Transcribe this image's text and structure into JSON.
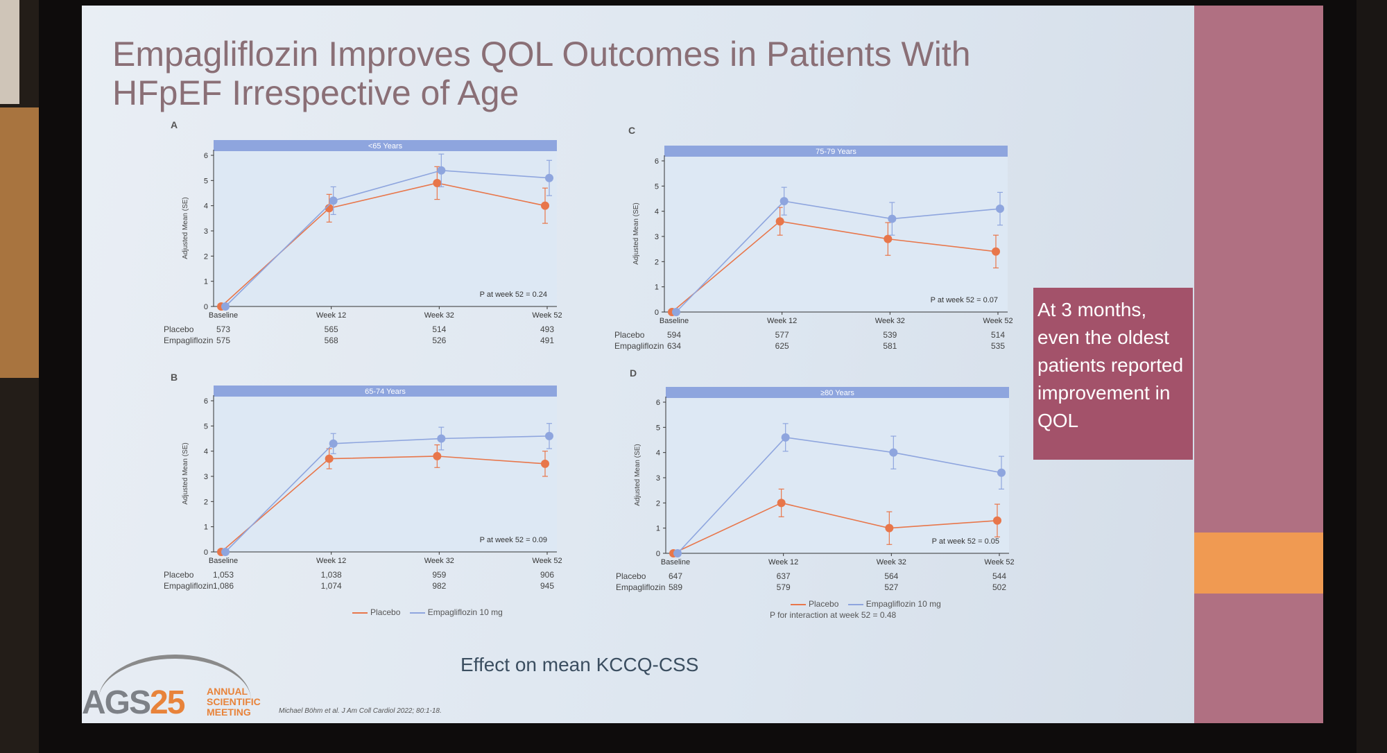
{
  "slide": {
    "title": "Empagliflozin Improves QOL Outcomes in Patients With HFpEF Irrespective of Age",
    "callout": "At 3 months, even the oldest patients reported improvement in QOL",
    "effect_label": "Effect on mean KCCQ-CSS",
    "citation": "Michael Böhm et al. J Am Coll Cardiol 2022; 80:1-18.",
    "logo": {
      "letters": "AGS",
      "number": "25",
      "line1": "ANNUAL",
      "line2": "SCIENTIFIC",
      "line3": "MEETING"
    },
    "colors": {
      "placebo": "#e8764a",
      "empagliflozin": "#8ea5de",
      "banner": "#8ea5de",
      "callout": "#a3526a"
    }
  },
  "legend": {
    "placebo": "Placebo",
    "empagliflozin": "Empagliflozin 10 mg"
  },
  "p_interaction": "P for interaction at week 52 = 0.48",
  "chart_data": [
    {
      "panel": "A",
      "type": "line",
      "banner": "<65 Years",
      "ylabel": "Adjusted Mean (SE)",
      "ylim": [
        0,
        6
      ],
      "yticks": [
        "0",
        "1",
        "2",
        "3",
        "4",
        "5",
        "6"
      ],
      "categories": [
        "Baseline",
        "Week 12",
        "Week 32",
        "Week 52"
      ],
      "p_text": "P at week 52 = 0.24",
      "series": [
        {
          "name": "Placebo",
          "values": [
            0,
            3.9,
            4.9,
            4.0
          ],
          "errors": [
            0,
            0.55,
            0.65,
            0.7
          ]
        },
        {
          "name": "Empagliflozin 10 mg",
          "values": [
            0,
            4.2,
            5.4,
            5.1
          ],
          "errors": [
            0,
            0.55,
            0.65,
            0.7
          ]
        }
      ],
      "counts": {
        "placebo_label": "Placebo",
        "empa_label": "Empagliflozin",
        "placebo": [
          "573",
          "565",
          "514",
          "493"
        ],
        "empagliflozin": [
          "575",
          "568",
          "526",
          "491"
        ]
      }
    },
    {
      "panel": "B",
      "type": "line",
      "banner": "65-74 Years",
      "ylabel": "Adjusted Mean (SE)",
      "ylim": [
        0,
        6
      ],
      "yticks": [
        "0",
        "1",
        "2",
        "3",
        "4",
        "5",
        "6"
      ],
      "categories": [
        "Baseline",
        "Week 12",
        "Week 32",
        "Week 52"
      ],
      "p_text": "P at week 52 = 0.09",
      "series": [
        {
          "name": "Placebo",
          "values": [
            0,
            3.7,
            3.8,
            3.5
          ],
          "errors": [
            0,
            0.4,
            0.45,
            0.5
          ]
        },
        {
          "name": "Empagliflozin 10 mg",
          "values": [
            0,
            4.3,
            4.5,
            4.6
          ],
          "errors": [
            0,
            0.4,
            0.45,
            0.5
          ]
        }
      ],
      "counts": {
        "placebo_label": "Placebo",
        "empa_label": "Empagliflozin",
        "placebo": [
          "1,053",
          "1,038",
          "959",
          "906"
        ],
        "empagliflozin": [
          "1,086",
          "1,074",
          "982",
          "945"
        ]
      }
    },
    {
      "panel": "C",
      "type": "line",
      "banner": "75-79 Years",
      "ylabel": "Adjusted Mean (SE)",
      "ylim": [
        0,
        6
      ],
      "yticks": [
        "0",
        "1",
        "2",
        "3",
        "4",
        "5",
        "6"
      ],
      "categories": [
        "Baseline",
        "Week 12",
        "Week 32",
        "Week 52"
      ],
      "p_text": "P at week 52 = 0.07",
      "series": [
        {
          "name": "Placebo",
          "values": [
            0,
            3.6,
            2.9,
            2.4
          ],
          "errors": [
            0,
            0.55,
            0.65,
            0.65
          ]
        },
        {
          "name": "Empagliflozin 10 mg",
          "values": [
            0,
            4.4,
            3.7,
            4.1
          ],
          "errors": [
            0,
            0.55,
            0.65,
            0.65
          ]
        }
      ],
      "counts": {
        "placebo_label": "Placebo",
        "empa_label": "Empagliflozin",
        "placebo": [
          "594",
          "577",
          "539",
          "514"
        ],
        "empagliflozin": [
          "634",
          "625",
          "581",
          "535"
        ]
      }
    },
    {
      "panel": "D",
      "type": "line",
      "banner": "≥80 Years",
      "ylabel": "Adjusted Mean (SE)",
      "ylim": [
        0,
        6
      ],
      "yticks": [
        "0",
        "1",
        "2",
        "3",
        "4",
        "5",
        "6"
      ],
      "categories": [
        "Baseline",
        "Week 12",
        "Week 32",
        "Week 52"
      ],
      "p_text": "P at week 52 = 0.05",
      "series": [
        {
          "name": "Placebo",
          "values": [
            0,
            2.0,
            1.0,
            1.3
          ],
          "errors": [
            0,
            0.55,
            0.65,
            0.65
          ]
        },
        {
          "name": "Empagliflozin 10 mg",
          "values": [
            0,
            4.6,
            4.0,
            3.2
          ],
          "errors": [
            0,
            0.55,
            0.65,
            0.65
          ]
        }
      ],
      "counts": {
        "placebo_label": "Placebo",
        "empa_label": "Empagliflozin",
        "placebo": [
          "647",
          "637",
          "564",
          "544"
        ],
        "empagliflozin": [
          "589",
          "579",
          "527",
          "502"
        ]
      }
    }
  ]
}
